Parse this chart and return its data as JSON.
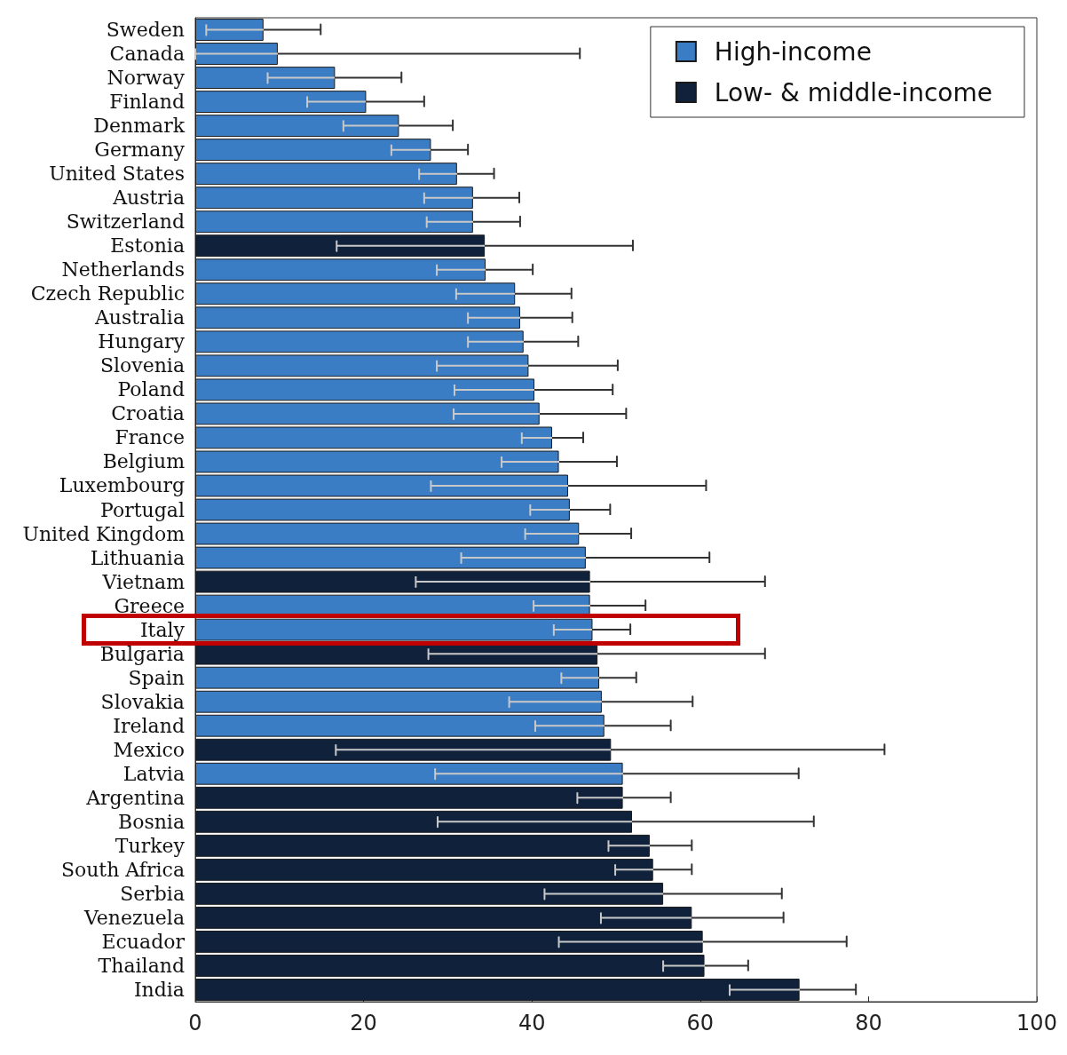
{
  "chart_data": {
    "type": "bar",
    "orientation": "horizontal",
    "categories": [
      "Sweden",
      "Canada",
      "Norway",
      "Finland",
      "Denmark",
      "Germany",
      "United States",
      "Austria",
      "Switzerland",
      "Estonia",
      "Netherlands",
      "Czech Republic",
      "Australia",
      "Hungary",
      "Slovenia",
      "Poland",
      "Croatia",
      "France",
      "Belgium",
      "Luxembourg",
      "Portugal",
      "United Kingdom",
      "Lithuania",
      "Vietnam",
      "Greece",
      "Italy",
      "Bulgaria",
      "Spain",
      "Slovakia",
      "Ireland",
      "Mexico",
      "Latvia",
      "Argentina",
      "Bosnia",
      "Turkey",
      "South Africa",
      "Serbia",
      "Venezuela",
      "Ecuador",
      "Thailand",
      "India"
    ],
    "series": [
      {
        "name": "High-income",
        "color": "#3b7dc4",
        "values": [
          8.1,
          9.8,
          16.6,
          20.3,
          24.2,
          28.0,
          31.1,
          33.0,
          33.0,
          null,
          34.5,
          38.0,
          38.6,
          39.0,
          39.6,
          40.3,
          40.9,
          42.4,
          43.2,
          44.3,
          44.5,
          45.6,
          46.4,
          null,
          46.9,
          47.2,
          null,
          48.0,
          48.3,
          48.6,
          null,
          50.8,
          null,
          null,
          null,
          null,
          null,
          null,
          null,
          null,
          null
        ],
        "errors": [
          [
            1.3,
            14.9
          ],
          [
            0,
            45.7
          ],
          [
            8.6,
            24.5
          ],
          [
            13.3,
            27.2
          ],
          [
            17.6,
            30.6
          ],
          [
            23.3,
            32.4
          ],
          [
            26.6,
            35.5
          ],
          [
            27.2,
            38.5
          ],
          [
            27.5,
            38.6
          ],
          null,
          [
            28.7,
            40.1
          ],
          [
            31.0,
            44.7
          ],
          [
            32.4,
            44.8
          ],
          [
            32.4,
            45.5
          ],
          [
            28.7,
            50.2
          ],
          [
            30.8,
            49.6
          ],
          [
            30.7,
            51.2
          ],
          [
            38.8,
            46.1
          ],
          [
            36.4,
            50.1
          ],
          [
            28.0,
            60.7
          ],
          [
            39.8,
            49.3
          ],
          [
            39.2,
            51.8
          ],
          [
            31.6,
            61.1
          ],
          null,
          [
            40.2,
            53.5
          ],
          [
            42.6,
            51.7
          ],
          null,
          [
            43.5,
            52.4
          ],
          [
            37.3,
            59.1
          ],
          [
            40.4,
            56.5
          ],
          null,
          [
            28.5,
            71.7
          ],
          null,
          null,
          null,
          null,
          null,
          null,
          null,
          null,
          null
        ]
      },
      {
        "name": "Low- & middle-income",
        "color": "#10213b",
        "values": [
          null,
          null,
          null,
          null,
          null,
          null,
          null,
          null,
          null,
          34.4,
          null,
          null,
          null,
          null,
          null,
          null,
          null,
          null,
          null,
          null,
          null,
          null,
          null,
          46.9,
          null,
          null,
          47.8,
          null,
          null,
          null,
          49.4,
          null,
          50.8,
          51.9,
          54.0,
          54.4,
          55.6,
          59.0,
          60.3,
          60.5,
          71.8
        ],
        "errors": [
          null,
          null,
          null,
          null,
          null,
          null,
          null,
          null,
          null,
          [
            16.8,
            52.0
          ],
          null,
          null,
          null,
          null,
          null,
          null,
          null,
          null,
          null,
          null,
          null,
          null,
          null,
          [
            26.2,
            67.7
          ],
          null,
          null,
          [
            27.7,
            67.7
          ],
          null,
          null,
          null,
          [
            16.7,
            81.9
          ],
          null,
          [
            45.4,
            56.5
          ],
          [
            28.8,
            73.5
          ],
          [
            49.1,
            59.0
          ],
          [
            49.9,
            59.0
          ],
          [
            41.5,
            69.7
          ],
          [
            48.2,
            69.9
          ],
          [
            43.2,
            77.4
          ],
          [
            55.6,
            65.7
          ],
          [
            63.5,
            78.5
          ]
        ]
      }
    ],
    "xlim": [
      0,
      100
    ],
    "xticks": [
      0,
      20,
      40,
      60,
      80,
      100
    ],
    "grid": false,
    "legend": "top right"
  }
}
